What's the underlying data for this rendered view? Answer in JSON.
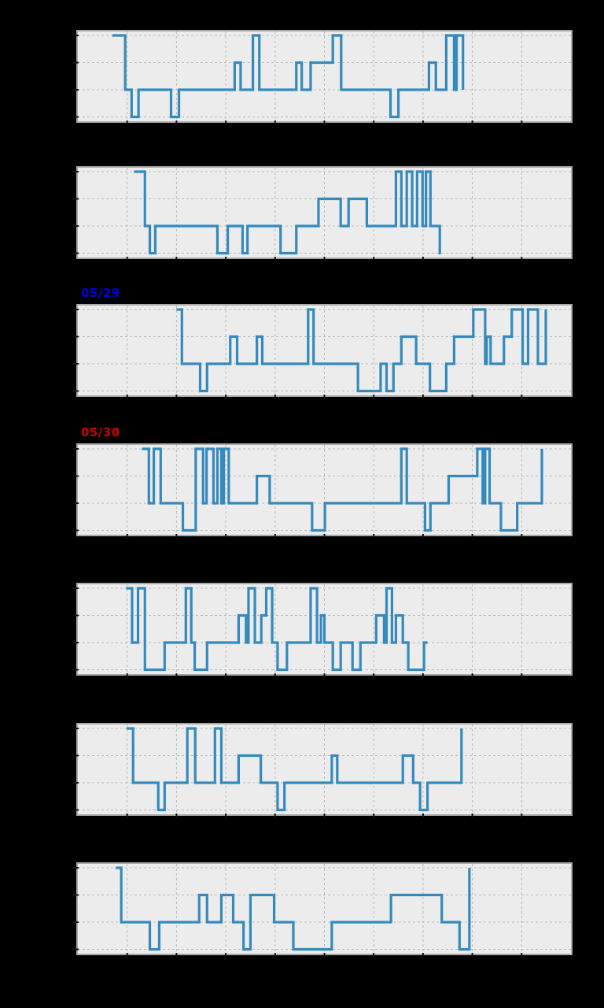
{
  "figure": {
    "background_color": "#000000",
    "plot_background_color": "#ececec",
    "grid_color": "#bababa",
    "frame_color": "#a8a8a8",
    "line_color": "#348abd",
    "tick_color": "#111111"
  },
  "chart_data": [
    {
      "type": "line",
      "style": "step",
      "date_label": "",
      "label_color": "",
      "x_range": [
        0,
        10
      ],
      "y_levels": [
        -1,
        0,
        1,
        2
      ],
      "grid": "dashed",
      "legend": "none",
      "axis_tick_labels_visible": false,
      "runs": [
        [
          0.7,
          0.96,
          2
        ],
        [
          0.96,
          1.09,
          0
        ],
        [
          1.09,
          1.23,
          -1
        ],
        [
          1.23,
          1.89,
          0
        ],
        [
          1.89,
          2.05,
          -1
        ],
        [
          2.05,
          3.18,
          0
        ],
        [
          3.18,
          3.3,
          1
        ],
        [
          3.3,
          3.55,
          0
        ],
        [
          3.55,
          3.68,
          2
        ],
        [
          3.68,
          4.43,
          0
        ],
        [
          4.43,
          4.54,
          1
        ],
        [
          4.54,
          4.72,
          0
        ],
        [
          4.72,
          5.17,
          1
        ],
        [
          5.17,
          5.34,
          2
        ],
        [
          5.34,
          6.34,
          0
        ],
        [
          6.34,
          6.5,
          -1
        ],
        [
          6.5,
          7.12,
          0
        ],
        [
          7.12,
          7.26,
          1
        ],
        [
          7.26,
          7.47,
          0
        ],
        [
          7.47,
          7.63,
          2
        ],
        [
          7.63,
          7.68,
          0
        ],
        [
          7.68,
          7.81,
          2
        ],
        [
          7.81,
          7.81,
          0
        ]
      ]
    },
    {
      "type": "line",
      "style": "step",
      "date_label": "",
      "label_color": "",
      "x_range": [
        0,
        10
      ],
      "y_levels": [
        -1,
        0,
        1,
        2
      ],
      "grid": "dashed",
      "legend": "none",
      "axis_tick_labels_visible": false,
      "runs": [
        [
          1.14,
          1.36,
          2
        ],
        [
          1.36,
          1.46,
          0
        ],
        [
          1.46,
          1.57,
          -1
        ],
        [
          1.57,
          2.83,
          0
        ],
        [
          2.83,
          3.04,
          -1
        ],
        [
          3.04,
          3.34,
          0
        ],
        [
          3.34,
          3.44,
          -1
        ],
        [
          3.44,
          4.11,
          0
        ],
        [
          4.11,
          4.43,
          -1
        ],
        [
          4.43,
          4.88,
          0
        ],
        [
          4.88,
          5.33,
          1
        ],
        [
          5.33,
          5.49,
          0
        ],
        [
          5.49,
          5.86,
          1
        ],
        [
          5.86,
          6.45,
          0
        ],
        [
          6.45,
          6.56,
          2
        ],
        [
          6.56,
          6.67,
          0
        ],
        [
          6.67,
          6.78,
          2
        ],
        [
          6.78,
          6.88,
          0
        ],
        [
          6.88,
          6.99,
          2
        ],
        [
          6.99,
          7.06,
          0
        ],
        [
          7.06,
          7.15,
          2
        ],
        [
          7.15,
          7.34,
          0
        ],
        [
          7.34,
          7.36,
          -1
        ]
      ]
    },
    {
      "type": "line",
      "style": "step",
      "date_label": "05/29",
      "label_color": "#0000e0",
      "x_range": [
        0,
        10
      ],
      "y_levels": [
        -1,
        0,
        1,
        2
      ],
      "grid": "dashed",
      "legend": "none",
      "axis_tick_labels_visible": false,
      "runs": [
        [
          2.0,
          2.11,
          2
        ],
        [
          2.11,
          2.48,
          0
        ],
        [
          2.48,
          2.62,
          -1
        ],
        [
          2.62,
          3.09,
          0
        ],
        [
          3.09,
          3.23,
          1
        ],
        [
          3.23,
          3.63,
          0
        ],
        [
          3.63,
          3.74,
          1
        ],
        [
          3.74,
          4.67,
          0
        ],
        [
          4.67,
          4.78,
          2
        ],
        [
          4.78,
          5.68,
          0
        ],
        [
          5.68,
          6.14,
          -1
        ],
        [
          6.14,
          6.26,
          0
        ],
        [
          6.26,
          6.4,
          -1
        ],
        [
          6.4,
          6.56,
          0
        ],
        [
          6.56,
          6.86,
          1
        ],
        [
          6.86,
          7.14,
          0
        ],
        [
          7.14,
          7.47,
          -1
        ],
        [
          7.47,
          7.63,
          0
        ],
        [
          7.63,
          8.02,
          1
        ],
        [
          8.02,
          8.26,
          2
        ],
        [
          8.26,
          8.29,
          0
        ],
        [
          8.29,
          8.37,
          1
        ],
        [
          8.37,
          8.64,
          0
        ],
        [
          8.64,
          8.8,
          1
        ],
        [
          8.8,
          9.02,
          2
        ],
        [
          9.02,
          9.13,
          0
        ],
        [
          9.13,
          9.33,
          2
        ],
        [
          9.33,
          9.49,
          0
        ],
        [
          9.49,
          9.49,
          2
        ]
      ]
    },
    {
      "type": "line",
      "style": "step",
      "date_label": "05/30",
      "label_color": "#cc0000",
      "x_range": [
        0,
        10
      ],
      "y_levels": [
        -1,
        0,
        1,
        2
      ],
      "grid": "dashed",
      "legend": "none",
      "axis_tick_labels_visible": false,
      "runs": [
        [
          1.3,
          1.44,
          2
        ],
        [
          1.44,
          1.54,
          0
        ],
        [
          1.54,
          1.68,
          2
        ],
        [
          1.68,
          2.13,
          0
        ],
        [
          2.13,
          2.39,
          -1
        ],
        [
          2.39,
          2.54,
          2
        ],
        [
          2.54,
          2.61,
          0
        ],
        [
          2.61,
          2.75,
          2
        ],
        [
          2.75,
          2.83,
          0
        ],
        [
          2.83,
          2.91,
          2
        ],
        [
          2.91,
          2.96,
          0
        ],
        [
          2.96,
          3.06,
          2
        ],
        [
          3.06,
          3.63,
          0
        ],
        [
          3.63,
          3.89,
          1
        ],
        [
          3.89,
          4.75,
          0
        ],
        [
          4.75,
          5.01,
          -1
        ],
        [
          5.01,
          6.56,
          0
        ],
        [
          6.56,
          6.67,
          2
        ],
        [
          6.67,
          7.04,
          0
        ],
        [
          7.04,
          7.15,
          -1
        ],
        [
          7.15,
          7.52,
          0
        ],
        [
          7.52,
          8.1,
          1
        ],
        [
          8.1,
          8.21,
          2
        ],
        [
          8.21,
          8.26,
          0
        ],
        [
          8.26,
          8.35,
          2
        ],
        [
          8.35,
          8.58,
          0
        ],
        [
          8.58,
          8.91,
          -1
        ],
        [
          8.91,
          9.41,
          0
        ],
        [
          9.41,
          9.41,
          2
        ]
      ]
    },
    {
      "type": "line",
      "style": "step",
      "date_label": "",
      "label_color": "",
      "x_range": [
        0,
        10
      ],
      "y_levels": [
        -1,
        0,
        1,
        2
      ],
      "grid": "dashed",
      "legend": "none",
      "axis_tick_labels_visible": false,
      "runs": [
        [
          0.98,
          1.1,
          2
        ],
        [
          1.1,
          1.22,
          0
        ],
        [
          1.22,
          1.36,
          2
        ],
        [
          1.36,
          1.76,
          -1
        ],
        [
          1.76,
          2.19,
          0
        ],
        [
          2.19,
          2.3,
          2
        ],
        [
          2.3,
          2.37,
          0
        ],
        [
          2.37,
          2.62,
          -1
        ],
        [
          2.62,
          3.26,
          0
        ],
        [
          3.26,
          3.41,
          1
        ],
        [
          3.41,
          3.46,
          0
        ],
        [
          3.46,
          3.59,
          2
        ],
        [
          3.59,
          3.72,
          0
        ],
        [
          3.72,
          3.82,
          1
        ],
        [
          3.82,
          3.94,
          2
        ],
        [
          3.94,
          4.05,
          0
        ],
        [
          4.05,
          4.24,
          -1
        ],
        [
          4.24,
          4.72,
          0
        ],
        [
          4.72,
          4.85,
          2
        ],
        [
          4.85,
          4.93,
          0
        ],
        [
          4.93,
          5.0,
          1
        ],
        [
          5.0,
          5.17,
          0
        ],
        [
          5.17,
          5.33,
          -1
        ],
        [
          5.33,
          5.57,
          0
        ],
        [
          5.57,
          5.73,
          -1
        ],
        [
          5.73,
          6.05,
          0
        ],
        [
          6.05,
          6.21,
          1
        ],
        [
          6.21,
          6.26,
          0
        ],
        [
          6.26,
          6.37,
          2
        ],
        [
          6.37,
          6.45,
          0
        ],
        [
          6.45,
          6.59,
          1
        ],
        [
          6.59,
          6.7,
          0
        ],
        [
          6.7,
          7.02,
          -1
        ],
        [
          7.02,
          7.09,
          0
        ]
      ]
    },
    {
      "type": "line",
      "style": "step",
      "date_label": "",
      "label_color": "",
      "x_range": [
        0,
        10
      ],
      "y_levels": [
        -1,
        0,
        1,
        2
      ],
      "grid": "dashed",
      "legend": "none",
      "axis_tick_labels_visible": false,
      "runs": [
        [
          0.99,
          1.12,
          2
        ],
        [
          1.12,
          1.63,
          0
        ],
        [
          1.63,
          1.76,
          -1
        ],
        [
          1.76,
          2.22,
          0
        ],
        [
          2.22,
          2.38,
          2
        ],
        [
          2.38,
          2.78,
          0
        ],
        [
          2.78,
          2.91,
          2
        ],
        [
          2.91,
          3.26,
          0
        ],
        [
          3.26,
          3.71,
          1
        ],
        [
          3.71,
          4.05,
          0
        ],
        [
          4.05,
          4.19,
          -1
        ],
        [
          4.19,
          5.15,
          0
        ],
        [
          5.15,
          5.26,
          1
        ],
        [
          5.26,
          6.59,
          0
        ],
        [
          6.59,
          6.8,
          1
        ],
        [
          6.8,
          6.94,
          0
        ],
        [
          6.94,
          7.09,
          -1
        ],
        [
          7.09,
          7.78,
          0
        ],
        [
          7.78,
          7.78,
          2
        ]
      ]
    },
    {
      "type": "line",
      "style": "step",
      "date_label": "",
      "label_color": "",
      "x_range": [
        0,
        10
      ],
      "y_levels": [
        -1,
        0,
        1,
        2
      ],
      "grid": "dashed",
      "legend": "none",
      "axis_tick_labels_visible": false,
      "runs": [
        [
          0.77,
          0.88,
          2
        ],
        [
          0.88,
          1.46,
          0
        ],
        [
          1.46,
          1.65,
          -1
        ],
        [
          1.65,
          2.46,
          0
        ],
        [
          2.46,
          2.62,
          1
        ],
        [
          2.62,
          2.91,
          0
        ],
        [
          2.91,
          3.15,
          1
        ],
        [
          3.15,
          3.36,
          0
        ],
        [
          3.36,
          3.5,
          -1
        ],
        [
          3.5,
          3.98,
          1
        ],
        [
          3.98,
          4.37,
          0
        ],
        [
          4.37,
          5.15,
          -1
        ],
        [
          5.15,
          6.35,
          0
        ],
        [
          6.35,
          7.38,
          1
        ],
        [
          7.38,
          7.74,
          0
        ],
        [
          7.74,
          7.94,
          -1
        ],
        [
          7.94,
          7.94,
          2
        ]
      ]
    }
  ]
}
